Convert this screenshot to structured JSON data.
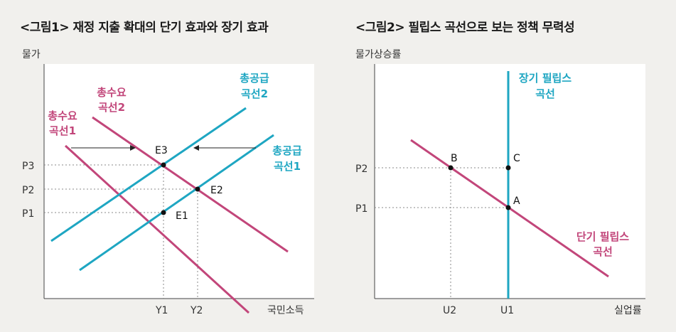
{
  "figure1": {
    "title": "<그림1> 재정 지출 확대의 단기 효과와 장기 효과",
    "y_axis_label": "물가",
    "x_axis_label": "국민소득",
    "y_ticks": [
      "P3",
      "P2",
      "P1"
    ],
    "x_ticks": [
      "Y1",
      "Y2"
    ],
    "points": [
      "E3",
      "E2",
      "E1"
    ],
    "curves": {
      "ad1": [
        "총수요",
        "곡선1"
      ],
      "ad2": [
        "총수요",
        "곡선2"
      ],
      "as1": [
        "총공급",
        "곡선1"
      ],
      "as2": [
        "총공급",
        "곡선2"
      ]
    }
  },
  "figure2": {
    "title": "<그림2> 필립스 곡선으로 보는 정책 무력성",
    "y_axis_label": "물가상승률",
    "x_axis_label": "실업률",
    "y_ticks": [
      "P2",
      "P1"
    ],
    "x_ticks": [
      "U2",
      "U1"
    ],
    "points": [
      "B",
      "C",
      "A"
    ],
    "curves": {
      "long_run": [
        "장기 필립스",
        "곡선"
      ],
      "short_run": [
        "단기 필립스",
        "곡선"
      ]
    }
  },
  "colors": {
    "demand": "#c2467a",
    "supply": "#1ea6c2",
    "plot_bg": "#ffffff",
    "page_bg": "#f1f0ed"
  }
}
